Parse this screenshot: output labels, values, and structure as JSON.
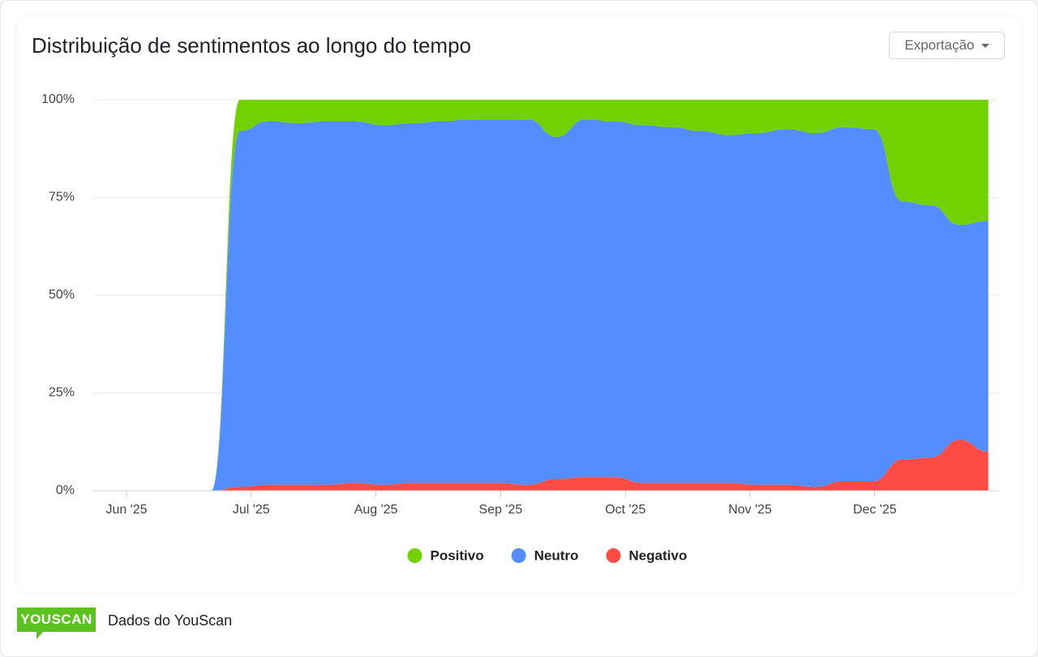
{
  "header": {
    "title": "Distribuição de sentimentos ao longo do tempo",
    "export_button": "Exportação"
  },
  "chart_data": {
    "type": "stacked-area",
    "x": [
      5.75,
      5.99,
      6.21,
      6.45,
      6.68,
      6.91,
      7.14,
      7.37,
      7.6,
      7.83,
      8.06,
      8.3,
      8.52,
      8.76,
      8.98,
      9.22,
      9.45,
      9.68,
      9.91,
      10.14,
      10.37,
      10.6,
      10.83,
      11.06,
      11.29,
      11.53,
      11.75,
      11.99,
      12.22,
      12.45,
      12.68,
      12.91
    ],
    "series": [
      {
        "name": "Positivo",
        "color": "#72d100",
        "values": [
          0,
          0,
          0,
          0,
          0,
          8,
          5.5,
          6,
          5.5,
          5.5,
          6.5,
          6,
          5.5,
          5,
          5,
          5,
          9.5,
          5,
          5.5,
          6.5,
          7,
          8,
          9,
          8.5,
          7.5,
          8.5,
          7,
          7.5,
          26,
          27,
          32,
          31
        ]
      },
      {
        "name": "Neutro",
        "color": "#548dff",
        "values": [
          0,
          0,
          0,
          0,
          0,
          91,
          93,
          92.5,
          93,
          92.5,
          92,
          92,
          92.5,
          93,
          93,
          93.5,
          87.5,
          91.5,
          91,
          91.5,
          91,
          90,
          89,
          90,
          91,
          90.5,
          90.5,
          90,
          66,
          64.5,
          55,
          59
        ]
      },
      {
        "name": "Negativo",
        "color": "#ff4d45",
        "values": [
          0,
          0,
          0,
          0,
          0,
          1,
          1.5,
          1.5,
          1.5,
          2,
          1.5,
          2,
          2,
          2,
          2,
          1.5,
          3,
          3.5,
          3.5,
          2,
          2,
          2,
          2,
          1.5,
          1.5,
          1,
          2.5,
          2.5,
          8,
          8.5,
          13,
          10
        ]
      }
    ],
    "xlim": [
      5.74,
      12.99
    ],
    "xticks": [
      {
        "value": 6,
        "label": "Jun '25"
      },
      {
        "value": 7,
        "label": "Jul '25"
      },
      {
        "value": 8,
        "label": "Aug '25"
      },
      {
        "value": 9,
        "label": "Sep '25"
      },
      {
        "value": 10,
        "label": "Oct '25"
      },
      {
        "value": 11,
        "label": "Nov '25"
      },
      {
        "value": 12,
        "label": "Dec '25"
      }
    ],
    "ylim": [
      0,
      100
    ],
    "yticks": [
      {
        "value": 0,
        "label": "0%"
      },
      {
        "value": 25,
        "label": "25%"
      },
      {
        "value": 50,
        "label": "50%"
      },
      {
        "value": 75,
        "label": "75%"
      },
      {
        "value": 100,
        "label": "100%"
      }
    ],
    "grid": true,
    "legend": "bottom"
  },
  "footer": {
    "logo": "YOUSCAN",
    "text": "Dados do YouScan"
  }
}
